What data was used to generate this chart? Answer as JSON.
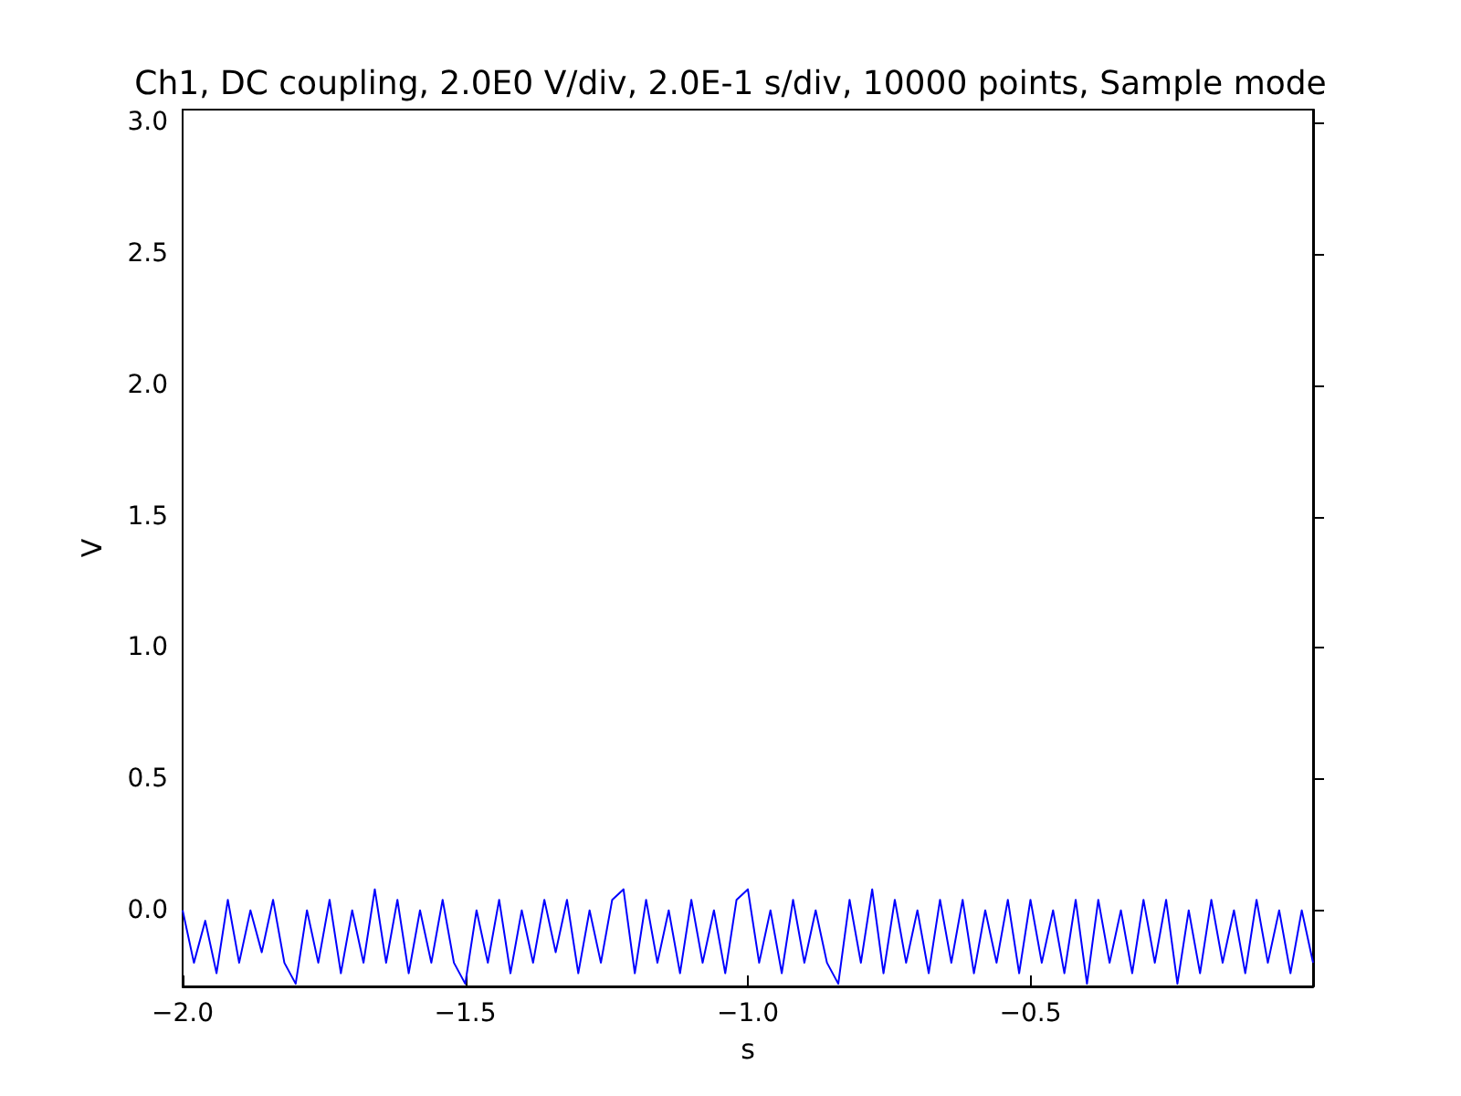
{
  "chart_data": {
    "type": "line",
    "title": "Ch1, DC coupling, 2.0E0 V/div, 2.0E-1 s/div, 10000 points, Sample mode",
    "xlabel": "s",
    "ylabel": "V",
    "x": [
      -2.0,
      -1.98,
      -1.96,
      -1.94,
      -1.92,
      -1.9,
      -1.88,
      -1.86,
      -1.84,
      -1.82,
      -1.8,
      -1.78,
      -1.76,
      -1.74,
      -1.72,
      -1.7,
      -1.68,
      -1.66,
      -1.64,
      -1.62,
      -1.6,
      -1.58,
      -1.56,
      -1.54,
      -1.52,
      -1.5,
      -1.48,
      -1.46,
      -1.44,
      -1.42,
      -1.4,
      -1.38,
      -1.36,
      -1.34,
      -1.32,
      -1.3,
      -1.28,
      -1.26,
      -1.24,
      -1.22,
      -1.2,
      -1.18,
      -1.16,
      -1.14,
      -1.12,
      -1.1,
      -1.08,
      -1.06,
      -1.04,
      -1.02,
      -1.0,
      -0.98,
      -0.96,
      -0.94,
      -0.92,
      -0.9,
      -0.88,
      -0.86,
      -0.84,
      -0.82,
      -0.8,
      -0.78,
      -0.76,
      -0.74,
      -0.72,
      -0.7,
      -0.68,
      -0.66,
      -0.64,
      -0.62,
      -0.6,
      -0.58,
      -0.56,
      -0.54,
      -0.52,
      -0.5,
      -0.48,
      -0.46,
      -0.44,
      -0.42,
      -0.4,
      -0.38,
      -0.36,
      -0.34,
      -0.32,
      -0.3,
      -0.28,
      -0.26,
      -0.24,
      -0.22,
      -0.2,
      -0.18,
      -0.16,
      -0.14,
      -0.12,
      -0.1,
      -0.08,
      -0.06,
      -0.04,
      -0.02,
      0.0
    ],
    "series": [
      {
        "color": "#0000ff",
        "values": [
          0.0,
          -0.2,
          -0.04,
          -0.24,
          0.04,
          -0.2,
          0.0,
          -0.16,
          0.04,
          -0.2,
          -0.28,
          0.0,
          -0.2,
          0.04,
          -0.24,
          0.0,
          -0.2,
          0.08,
          -0.2,
          0.04,
          -0.24,
          0.0,
          -0.2,
          0.04,
          -0.2,
          -0.28,
          0.0,
          -0.2,
          0.04,
          -0.24,
          0.0,
          -0.2,
          0.04,
          -0.16,
          0.04,
          -0.24,
          0.0,
          -0.2,
          0.04,
          0.08,
          -0.24,
          0.04,
          -0.2,
          0.0,
          -0.24,
          0.04,
          -0.2,
          0.0,
          -0.24,
          0.04,
          0.08,
          -0.2,
          0.0,
          -0.24,
          0.04,
          -0.2,
          0.0,
          -0.2,
          -0.28,
          0.04,
          -0.2,
          0.08,
          -0.24,
          0.04,
          -0.2,
          0.0,
          -0.24,
          0.04,
          -0.2,
          0.04,
          -0.24,
          0.0,
          -0.2,
          0.04,
          -0.24,
          0.04,
          -0.2,
          0.0,
          -0.24,
          0.04,
          -0.28,
          0.04,
          -0.2,
          0.0,
          -0.24,
          0.04,
          -0.2,
          0.04,
          -0.28,
          0.0,
          -0.24,
          0.04,
          -0.2,
          0.0,
          -0.24,
          0.04,
          -0.2,
          0.0,
          -0.24,
          0.0,
          -0.2
        ]
      }
    ],
    "xlim": [
      -2.0,
      0.0
    ],
    "xticks": [
      {
        "value": -2.0,
        "label": "−2.0"
      },
      {
        "value": -1.5,
        "label": "−1.5"
      },
      {
        "value": -1.0,
        "label": "−1.0"
      },
      {
        "value": -0.5,
        "label": "−0.5"
      }
    ],
    "ylim": [
      -0.29,
      3.05
    ],
    "yticks": [
      {
        "value": 0.0,
        "label": "0.0"
      },
      {
        "value": 0.5,
        "label": "0.5"
      },
      {
        "value": 1.0,
        "label": "1.0"
      },
      {
        "value": 1.5,
        "label": "1.5"
      },
      {
        "value": 2.0,
        "label": "2.0"
      },
      {
        "value": 2.5,
        "label": "2.5"
      },
      {
        "value": 3.0,
        "label": "3.0"
      }
    ],
    "grid": false,
    "marker": "none",
    "line_style": "solid"
  }
}
